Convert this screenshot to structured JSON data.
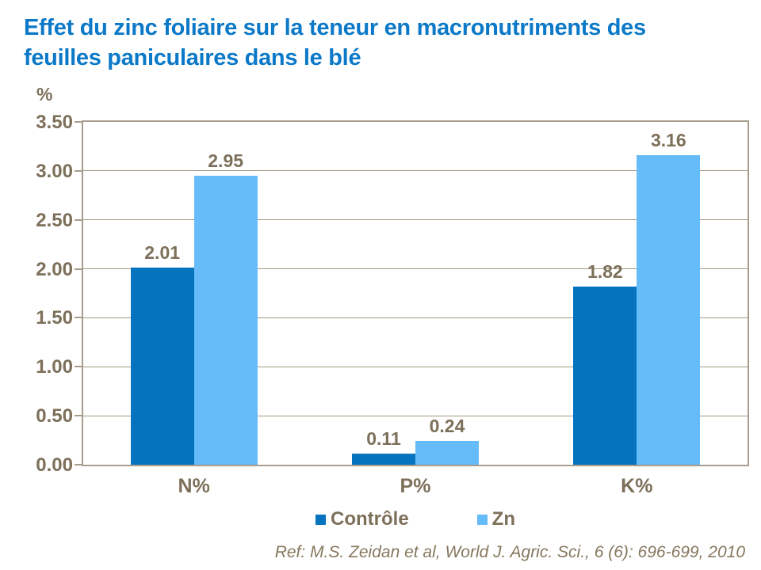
{
  "slide": {
    "title_line1": "Effet du zinc foliaire sur la teneur en macronutriments des",
    "title_line2": "feuilles paniculaires dans le blé",
    "reference": "Ref: M.S. Zeidan et al, World J. Agric. Sci., 6 (6): 696-699, 2010"
  },
  "chart_data": {
    "type": "bar",
    "title": "Effet du zinc foliaire sur la teneur en macronutriments des feuilles paniculaires dans le blé",
    "categories": [
      "N%",
      "P%",
      "K%"
    ],
    "series": [
      {
        "name": "Contrôle",
        "color": "#0673BF",
        "values": [
          2.01,
          0.11,
          1.82
        ]
      },
      {
        "name": "Zn",
        "color": "#66BBF9",
        "values": [
          2.95,
          0.24,
          3.16
        ]
      }
    ],
    "ylabel": "%",
    "xlabel": "",
    "ylim": [
      0,
      3.5
    ],
    "ytick_step": 0.5,
    "ytick_labels": [
      "0.00",
      "0.50",
      "1.00",
      "1.50",
      "2.00",
      "2.50",
      "3.00",
      "3.50"
    ],
    "grid": true,
    "value_labels_shown": true,
    "legend_position": "bottom"
  },
  "colors": {
    "background": "#FFFFFF",
    "title": "#0B79C8",
    "axis_text": "#7D705A",
    "plot_border": "#A89D8D",
    "gridline": "#A39980",
    "reference_text": "#86785E"
  }
}
